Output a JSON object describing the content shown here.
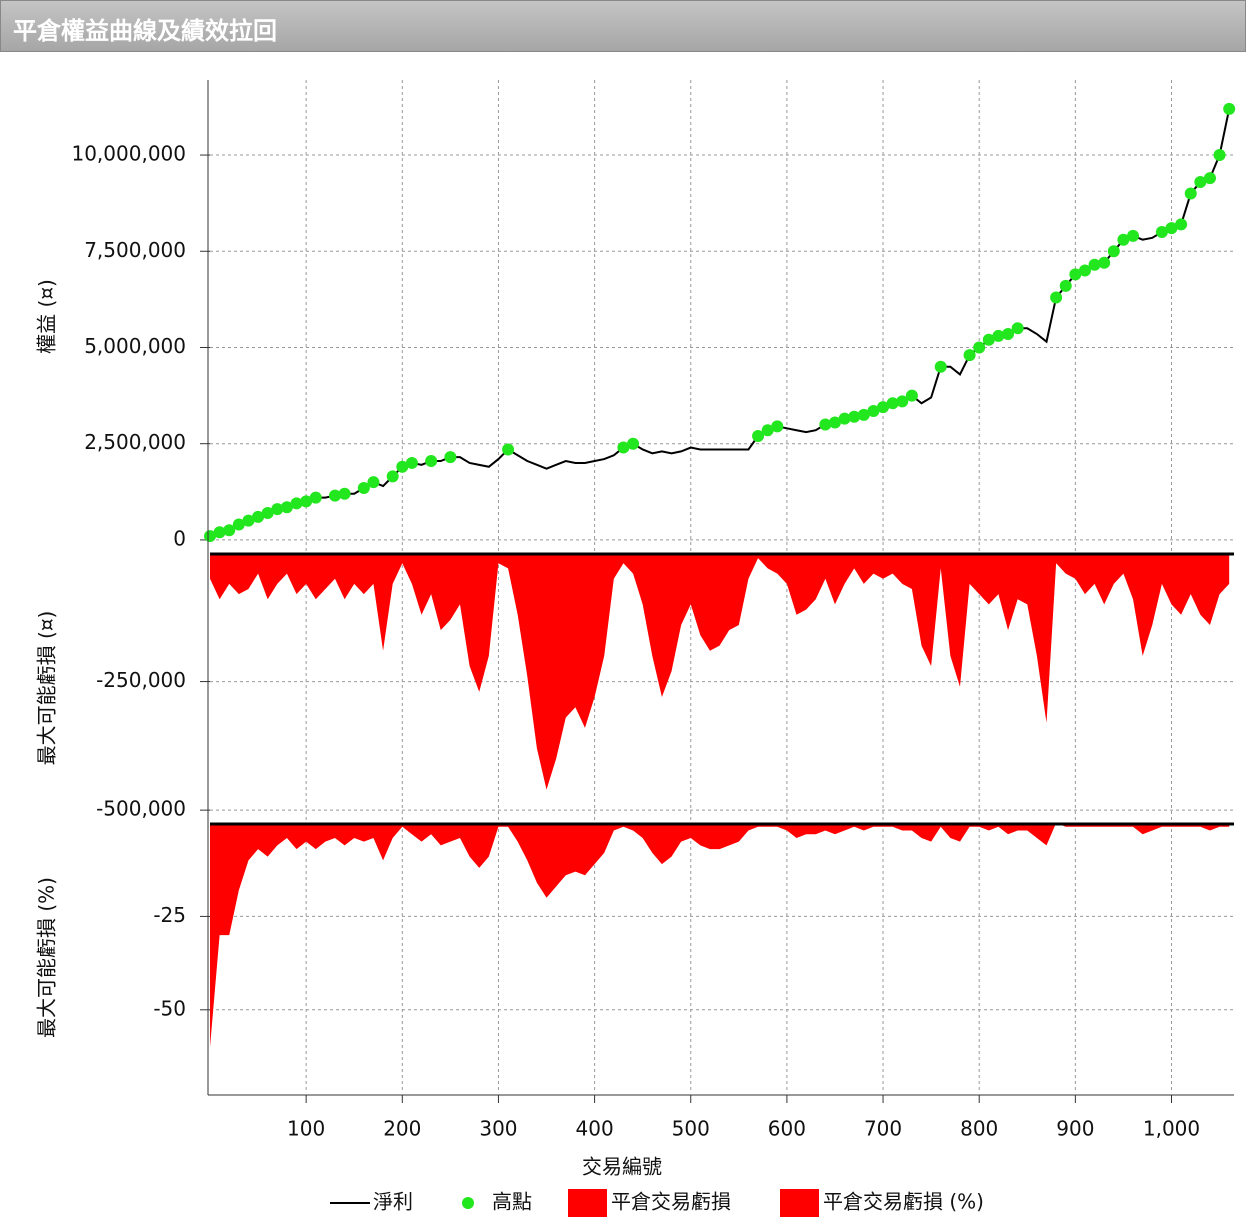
{
  "title": "平倉權益曲線及績效拉回",
  "chart_data": [
    {
      "type": "line",
      "ylabel": "權益 (¤)",
      "x": [
        0,
        10,
        20,
        30,
        40,
        50,
        60,
        70,
        80,
        90,
        100,
        110,
        120,
        130,
        140,
        150,
        160,
        170,
        180,
        190,
        200,
        210,
        220,
        230,
        240,
        250,
        260,
        270,
        280,
        290,
        300,
        310,
        320,
        330,
        340,
        350,
        360,
        370,
        380,
        390,
        400,
        410,
        420,
        430,
        440,
        450,
        460,
        470,
        480,
        490,
        500,
        510,
        520,
        530,
        540,
        550,
        560,
        570,
        580,
        590,
        600,
        610,
        620,
        630,
        640,
        650,
        660,
        670,
        680,
        690,
        700,
        710,
        720,
        730,
        740,
        750,
        760,
        770,
        780,
        790,
        800,
        810,
        820,
        830,
        840,
        850,
        860,
        870,
        880,
        890,
        900,
        910,
        920,
        930,
        940,
        950,
        960,
        970,
        980,
        990,
        1000,
        1010,
        1020,
        1030,
        1040,
        1050,
        1060
      ],
      "ylim": [
        -340000,
        11950000
      ],
      "yticks": [
        0,
        {
          "value": 2500000,
          "label": "2,500,000"
        },
        {
          "value": 5000000,
          "label": "5,000,000"
        },
        {
          "value": 7500000,
          "label": "7,500,000"
        },
        {
          "value": 10000000,
          "label": "10,000,000"
        }
      ],
      "grid": true,
      "series": [
        {
          "name": "淨利",
          "type": "line",
          "color": "#000000",
          "values": [
            100000,
            200000,
            250000,
            400000,
            500000,
            600000,
            700000,
            800000,
            850000,
            950000,
            1000000,
            1100000,
            1100000,
            1150000,
            1200000,
            1200000,
            1350000,
            1500000,
            1400000,
            1650000,
            1900000,
            2000000,
            1950000,
            2050000,
            2050000,
            2150000,
            2150000,
            2000000,
            1950000,
            1900000,
            2100000,
            2350000,
            2200000,
            2050000,
            1950000,
            1850000,
            1950000,
            2050000,
            2000000,
            2000000,
            2050000,
            2100000,
            2200000,
            2400000,
            2500000,
            2350000,
            2250000,
            2300000,
            2250000,
            2300000,
            2400000,
            2350000,
            2350000,
            2350000,
            2350000,
            2350000,
            2350000,
            2700000,
            2850000,
            2950000,
            2900000,
            2850000,
            2800000,
            2850000,
            3000000,
            3050000,
            3150000,
            3200000,
            3250000,
            3350000,
            3450000,
            3550000,
            3600000,
            3750000,
            3550000,
            3700000,
            4500000,
            4500000,
            4300000,
            4800000,
            5000000,
            5200000,
            5300000,
            5350000,
            5500000,
            5500000,
            5350000,
            5150000,
            6300000,
            6600000,
            6900000,
            7000000,
            7150000,
            7200000,
            7500000,
            7800000,
            7900000,
            7800000,
            7850000,
            8000000,
            8100000,
            8200000,
            9000000,
            9300000,
            9400000,
            10000000,
            11200000
          ]
        },
        {
          "name": "高點",
          "type": "scatter",
          "color": "#22e61e",
          "values": [
            100000,
            200000,
            250000,
            400000,
            500000,
            600000,
            700000,
            800000,
            850000,
            950000,
            1000000,
            1100000,
            null,
            1150000,
            1200000,
            null,
            1350000,
            1500000,
            null,
            1650000,
            1900000,
            2000000,
            null,
            2050000,
            null,
            2150000,
            null,
            null,
            null,
            null,
            null,
            2350000,
            null,
            null,
            null,
            null,
            null,
            null,
            null,
            null,
            null,
            null,
            null,
            2400000,
            2500000,
            null,
            null,
            null,
            null,
            null,
            null,
            null,
            null,
            null,
            null,
            null,
            null,
            2700000,
            2850000,
            2950000,
            null,
            null,
            null,
            null,
            3000000,
            3050000,
            3150000,
            3200000,
            3250000,
            3350000,
            3450000,
            3550000,
            3600000,
            3750000,
            null,
            null,
            4500000,
            null,
            null,
            4800000,
            5000000,
            5200000,
            5300000,
            5350000,
            5500000,
            null,
            null,
            null,
            6300000,
            6600000,
            6900000,
            7000000,
            7150000,
            7200000,
            7500000,
            7800000,
            7900000,
            null,
            null,
            8000000,
            8100000,
            8200000,
            9000000,
            9300000,
            9400000,
            10000000,
            11200000
          ]
        }
      ]
    },
    {
      "type": "area",
      "ylabel": "最大可能虧損 (¤)",
      "x": [
        0,
        10,
        20,
        30,
        40,
        50,
        60,
        70,
        80,
        90,
        100,
        110,
        120,
        130,
        140,
        150,
        160,
        170,
        180,
        190,
        200,
        210,
        220,
        230,
        240,
        250,
        260,
        270,
        280,
        290,
        300,
        310,
        320,
        330,
        340,
        350,
        360,
        370,
        380,
        390,
        400,
        410,
        420,
        430,
        440,
        450,
        460,
        470,
        480,
        490,
        500,
        510,
        520,
        530,
        540,
        550,
        560,
        570,
        580,
        590,
        600,
        610,
        620,
        630,
        640,
        650,
        660,
        670,
        680,
        690,
        700,
        710,
        720,
        730,
        740,
        750,
        760,
        770,
        780,
        790,
        800,
        810,
        820,
        830,
        840,
        850,
        860,
        870,
        880,
        890,
        900,
        910,
        920,
        930,
        940,
        950,
        960,
        970,
        980,
        990,
        1000,
        1010,
        1020,
        1030,
        1040,
        1050,
        1060
      ],
      "ylim": [
        -525000,
        0
      ],
      "yticks": [
        {
          "value": -250000,
          "label": "-250,000"
        },
        {
          "value": -500000,
          "label": "-500,000"
        }
      ],
      "grid": true,
      "series": [
        {
          "name": "平倉交易虧損",
          "color": "#ff0000",
          "values": [
            -50000,
            -90000,
            -60000,
            -80000,
            -70000,
            -40000,
            -90000,
            -60000,
            -40000,
            -80000,
            -60000,
            -90000,
            -70000,
            -50000,
            -90000,
            -60000,
            -80000,
            -60000,
            -190000,
            -60000,
            -20000,
            -60000,
            -120000,
            -80000,
            -150000,
            -130000,
            -100000,
            -220000,
            -270000,
            -200000,
            -20000,
            -30000,
            -120000,
            -240000,
            -380000,
            -460000,
            -400000,
            -320000,
            -300000,
            -340000,
            -280000,
            -200000,
            -50000,
            -20000,
            -40000,
            -100000,
            -200000,
            -280000,
            -230000,
            -140000,
            -100000,
            -160000,
            -190000,
            -180000,
            -150000,
            -140000,
            -50000,
            -10000,
            -30000,
            -40000,
            -60000,
            -120000,
            -110000,
            -90000,
            -50000,
            -100000,
            -60000,
            -30000,
            -60000,
            -40000,
            -50000,
            -40000,
            -60000,
            -70000,
            -180000,
            -220000,
            -30000,
            -200000,
            -260000,
            -60000,
            -80000,
            -100000,
            -80000,
            -150000,
            -90000,
            -100000,
            -200000,
            -330000,
            -20000,
            -40000,
            -50000,
            -80000,
            -60000,
            -100000,
            -60000,
            -40000,
            -90000,
            -200000,
            -140000,
            -60000,
            -100000,
            -120000,
            -80000,
            -120000,
            -140000,
            -80000,
            -60000
          ]
        }
      ]
    },
    {
      "type": "area",
      "ylabel": "最大可能虧損 (%)",
      "xlabel": "交易編號",
      "x": [
        0,
        10,
        20,
        30,
        40,
        50,
        60,
        70,
        80,
        90,
        100,
        110,
        120,
        130,
        140,
        150,
        160,
        170,
        180,
        190,
        200,
        210,
        220,
        230,
        240,
        250,
        260,
        270,
        280,
        290,
        300,
        310,
        320,
        330,
        340,
        350,
        360,
        370,
        380,
        390,
        400,
        410,
        420,
        430,
        440,
        450,
        460,
        470,
        480,
        490,
        500,
        510,
        520,
        530,
        540,
        550,
        560,
        570,
        580,
        590,
        600,
        610,
        620,
        630,
        640,
        650,
        660,
        670,
        680,
        690,
        700,
        710,
        720,
        730,
        740,
        750,
        760,
        770,
        780,
        790,
        800,
        810,
        820,
        830,
        840,
        850,
        860,
        870,
        880,
        890,
        900,
        910,
        920,
        930,
        940,
        950,
        960,
        970,
        980,
        990,
        1000,
        1010,
        1020,
        1030,
        1040,
        1050,
        1060
      ],
      "xlim": [
        0,
        1065
      ],
      "xticks": [
        100,
        200,
        300,
        400,
        500,
        600,
        700,
        800,
        900,
        {
          "value": 1000,
          "label": "1,000"
        }
      ],
      "ylim": [
        -72,
        0
      ],
      "yticks": [
        -25,
        -50
      ],
      "grid": true,
      "series": [
        {
          "name": "平倉交易虧損 (%)",
          "color": "#ff0000",
          "values": [
            -60,
            -30,
            -30,
            -18,
            -10,
            -7,
            -9,
            -6,
            -4,
            -7,
            -5,
            -7,
            -5,
            -4,
            -6,
            -4,
            -5,
            -4,
            -10,
            -4,
            -1,
            -3,
            -5,
            -3,
            -6,
            -5,
            -4,
            -9,
            -12,
            -9,
            -1,
            -1,
            -5,
            -10,
            -16,
            -20,
            -17,
            -14,
            -13,
            -14,
            -11,
            -8,
            -2,
            -1,
            -2,
            -4,
            -8,
            -11,
            -9,
            -5,
            -4,
            -6,
            -7,
            -7,
            -6,
            -5,
            -2,
            -1,
            -1,
            -1,
            -2,
            -4,
            -3,
            -3,
            -2,
            -3,
            -2,
            -1,
            -2,
            -1,
            -1,
            -1,
            -2,
            -2,
            -4,
            -5,
            -1,
            -4,
            -5,
            -1,
            -1,
            -2,
            -1,
            -3,
            -2,
            -2,
            -4,
            -6,
            0,
            -1,
            -1,
            -1,
            -1,
            -1,
            -1,
            -1,
            -1,
            -3,
            -2,
            -1,
            -1,
            -1,
            -1,
            -1,
            -2,
            -1,
            -1
          ]
        }
      ]
    }
  ]
}
